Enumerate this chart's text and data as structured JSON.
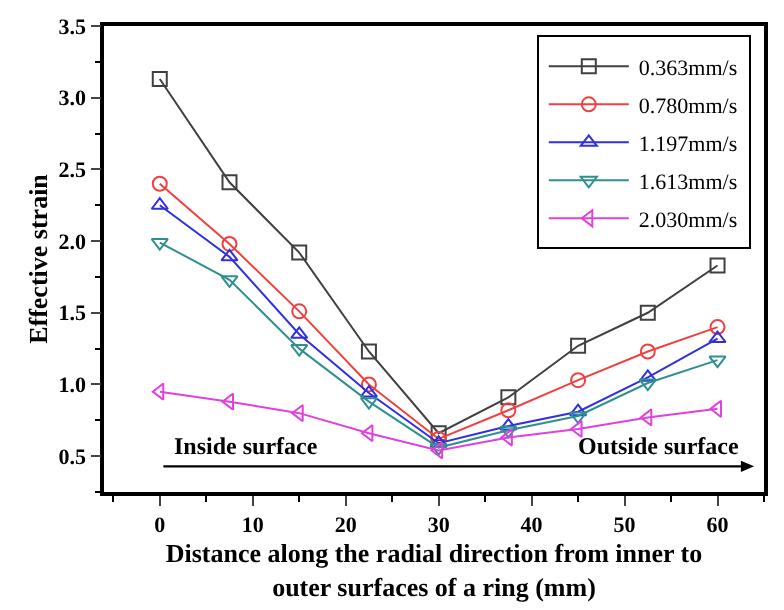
{
  "chart_data": {
    "type": "line",
    "xlabel": "Distance along the radial direction from inner to outer surfaces of a ring (mm)",
    "ylabel": "Effective strain",
    "x": [
      0,
      7.5,
      15,
      22.5,
      30,
      37.5,
      45,
      52.5,
      60
    ],
    "series": [
      {
        "name": "0.363mm/s",
        "color": "#404040",
        "marker": "square",
        "values": [
          3.13,
          2.41,
          1.92,
          1.23,
          0.66,
          0.91,
          1.27,
          1.5,
          1.83
        ]
      },
      {
        "name": "0.780mm/s",
        "color": "#f04040",
        "marker": "circle",
        "values": [
          2.4,
          1.98,
          1.51,
          1.0,
          0.62,
          0.82,
          1.03,
          1.23,
          1.4
        ]
      },
      {
        "name": "1.197mm/s",
        "color": "#3030e0",
        "marker": "triangle-up",
        "values": [
          2.25,
          1.89,
          1.35,
          0.94,
          0.59,
          0.71,
          0.81,
          1.05,
          1.32
        ]
      },
      {
        "name": "1.613mm/s",
        "color": "#309090",
        "marker": "triangle-down",
        "values": [
          1.99,
          1.73,
          1.25,
          0.88,
          0.56,
          0.68,
          0.78,
          1.01,
          1.17
        ]
      },
      {
        "name": "2.030mm/s",
        "color": "#e040e0",
        "marker": "triangle-left",
        "values": [
          0.95,
          0.88,
          0.8,
          0.66,
          0.54,
          0.63,
          0.69,
          0.77,
          0.83
        ]
      }
    ],
    "annotations": [
      "Inside surface",
      "Outside surface"
    ],
    "xlim": [
      -6,
      65
    ],
    "xticks": [
      0,
      10,
      20,
      30,
      40,
      50,
      60
    ],
    "ylim": [
      0.25,
      3.5
    ],
    "yticks": [
      {
        "value": 0.5,
        "label": "0.5"
      },
      {
        "value": 1.0,
        "label": "1.0"
      },
      {
        "value": 1.5,
        "label": "1.5"
      },
      {
        "value": 2.0,
        "label": "2.0"
      },
      {
        "value": 2.5,
        "label": "2.5"
      },
      {
        "value": 3.0,
        "label": "3.0"
      },
      {
        "value": 3.5,
        "label": "3.5"
      }
    ],
    "legend": "top right",
    "line_style": "solid"
  }
}
